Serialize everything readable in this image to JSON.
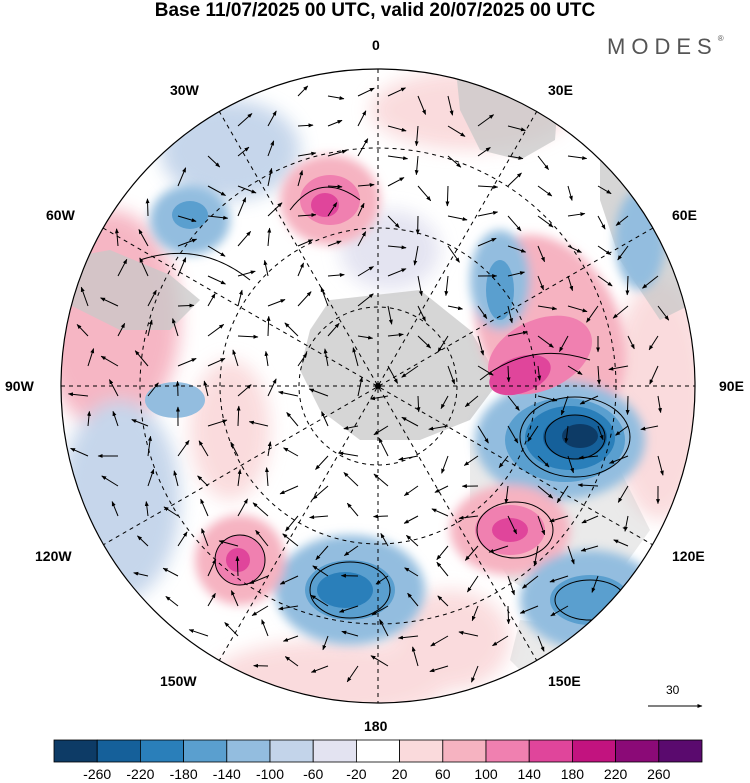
{
  "title": "Base 11/07/2025 00 UTC, valid 20/07/2025 00 UTC",
  "logo": "MODES",
  "logo_mark": "®",
  "longitude_labels": {
    "lon_0": "0",
    "lon_30e": "30E",
    "lon_60e": "60E",
    "lon_90e": "90E",
    "lon_120e": "120E",
    "lon_150e": "150E",
    "lon_180": "180",
    "lon_150w": "150W",
    "lon_120w": "120W",
    "lon_90w": "90W",
    "lon_60w": "60W",
    "lon_30w": "30W"
  },
  "reference_vector": {
    "value": "30"
  },
  "colorbar": {
    "levels": [
      "-260",
      "-220",
      "-180",
      "-140",
      "-100",
      "-60",
      "-20",
      "20",
      "60",
      "100",
      "140",
      "180",
      "220",
      "260"
    ],
    "colors": [
      "#0d3b66",
      "#15609a",
      "#2a7fba",
      "#5a9fcf",
      "#93bddf",
      "#c3d4ea",
      "#e3e3f1",
      "#ffffff",
      "#fadadc",
      "#f6b3c1",
      "#f080b0",
      "#e0459b",
      "#c2137f",
      "#8b0a77",
      "#5a0a6e"
    ]
  },
  "map_colors": {
    "land": "#c9c9c9",
    "grid": "#000000",
    "anomaly_blobs": [
      {
        "name": "southern-indian-ocean-low",
        "color": "#15609a",
        "level": "-220"
      },
      {
        "name": "south-pacific-low",
        "color": "#2a7fba",
        "level": "-180"
      },
      {
        "name": "tasman-sea-low",
        "color": "#5a9fcf",
        "level": "-140"
      },
      {
        "name": "south-indian-high",
        "color": "#e0459b",
        "level": "180"
      },
      {
        "name": "southern-australia-high",
        "color": "#e0459b",
        "level": "180"
      },
      {
        "name": "south-atlantic-high",
        "color": "#f080b0",
        "level": "140"
      },
      {
        "name": "southeast-pacific-high",
        "color": "#f080b0",
        "level": "140"
      }
    ]
  }
}
